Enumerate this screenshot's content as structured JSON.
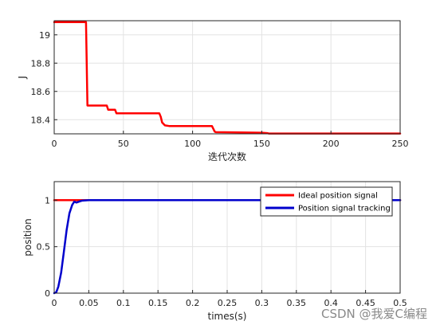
{
  "chart_data": [
    {
      "type": "line",
      "title": "",
      "xlabel": "迭代次数",
      "ylabel": "J",
      "xlim": [
        0,
        250
      ],
      "ylim": [
        18.3,
        19.1
      ],
      "xticks": [
        "0",
        "50",
        "100",
        "150",
        "200",
        "250"
      ],
      "yticks": [
        "18.4",
        "18.6",
        "18.8",
        "19"
      ],
      "grid": true,
      "series": [
        {
          "color": "#ff0000",
          "x": [
            0,
            23,
            24,
            38,
            39,
            44,
            45,
            76,
            77,
            78,
            80,
            83,
            87,
            114,
            116,
            117,
            135,
            150,
            154,
            155,
            250
          ],
          "y": [
            19.09,
            19.09,
            18.5,
            18.5,
            18.47,
            18.47,
            18.445,
            18.445,
            18.42,
            18.38,
            18.36,
            18.355,
            18.355,
            18.355,
            18.315,
            18.312,
            18.31,
            18.308,
            18.305,
            18.302,
            18.302
          ]
        }
      ]
    },
    {
      "type": "line",
      "title": "",
      "xlabel": "times(s)",
      "ylabel": "position",
      "xlim": [
        0,
        0.5
      ],
      "ylim": [
        0,
        1.2
      ],
      "xticks": [
        "0",
        "0.05",
        "0.1",
        "0.15",
        "0.2",
        "0.25",
        "0.3",
        "0.35",
        "0.4",
        "0.45",
        "0.5"
      ],
      "yticks": [
        "0",
        "0.5",
        "1"
      ],
      "grid": true,
      "legend_position": "top-right",
      "series": [
        {
          "name": "Ideal position signal",
          "color": "#ff0000",
          "x": [
            0,
            0.5
          ],
          "y": [
            1,
            1
          ]
        },
        {
          "name": "Position signal tracking",
          "color": "#0000cc",
          "x": [
            0,
            0.003,
            0.006,
            0.01,
            0.014,
            0.018,
            0.022,
            0.026,
            0.029,
            0.032,
            0.036,
            0.04,
            0.05,
            0.1,
            0.5
          ],
          "y": [
            0,
            0.01,
            0.07,
            0.22,
            0.45,
            0.68,
            0.86,
            0.95,
            0.985,
            0.975,
            0.985,
            0.995,
            1,
            1,
            1
          ]
        }
      ]
    }
  ],
  "watermark": "CSDN @我爱C编程"
}
